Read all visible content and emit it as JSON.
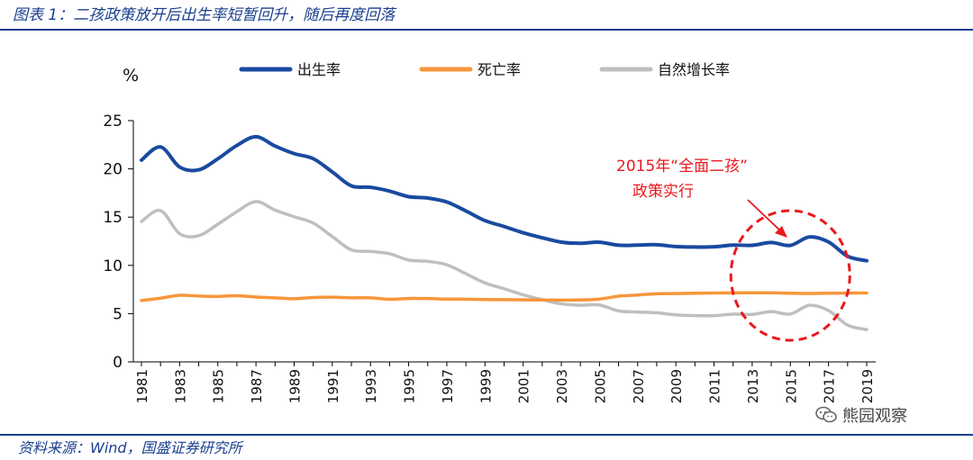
{
  "figure": {
    "title": "图表 1：二孩政策放开后出生率短暂回升，随后再度回落",
    "source": "资料来源：Wind，国盛证券研究所",
    "watermark": "熊园观察"
  },
  "chart_data": {
    "type": "line",
    "ylabel": "%",
    "ylim": [
      0,
      25
    ],
    "yticks": [
      0,
      5,
      10,
      15,
      20,
      25
    ],
    "xlim": [
      1981,
      2019
    ],
    "xticks": [
      "1981",
      "1983",
      "1985",
      "1987",
      "1989",
      "1991",
      "1993",
      "1995",
      "1997",
      "1999",
      "2001",
      "2003",
      "2005",
      "2007",
      "2009",
      "2011",
      "2013",
      "2015",
      "2017",
      "2019"
    ],
    "legend_position": "top",
    "grid": false,
    "x": [
      1981,
      1982,
      1983,
      1984,
      1985,
      1986,
      1987,
      1988,
      1989,
      1990,
      1991,
      1992,
      1993,
      1994,
      1995,
      1996,
      1997,
      1998,
      1999,
      2000,
      2001,
      2002,
      2003,
      2004,
      2005,
      2006,
      2007,
      2008,
      2009,
      2010,
      2011,
      2012,
      2013,
      2014,
      2015,
      2016,
      2017,
      2018,
      2019
    ],
    "series": [
      {
        "name": "出生率",
        "color": "#1a4aa0",
        "values": [
          20.91,
          22.28,
          20.19,
          19.9,
          21.04,
          22.43,
          23.33,
          22.37,
          21.58,
          21.06,
          19.68,
          18.24,
          18.09,
          17.7,
          17.12,
          16.98,
          16.57,
          15.64,
          14.64,
          14.03,
          13.38,
          12.86,
          12.41,
          12.29,
          12.4,
          12.09,
          12.1,
          12.14,
          11.95,
          11.9,
          11.93,
          12.1,
          12.08,
          12.37,
          12.07,
          12.95,
          12.43,
          10.94,
          10.48
        ]
      },
      {
        "name": "死亡率",
        "color": "#f7963c",
        "values": [
          6.36,
          6.6,
          6.9,
          6.82,
          6.78,
          6.86,
          6.72,
          6.64,
          6.54,
          6.67,
          6.7,
          6.64,
          6.64,
          6.49,
          6.57,
          6.56,
          6.51,
          6.5,
          6.46,
          6.45,
          6.43,
          6.41,
          6.4,
          6.42,
          6.51,
          6.81,
          6.93,
          7.06,
          7.08,
          7.11,
          7.14,
          7.15,
          7.16,
          7.16,
          7.11,
          7.09,
          7.11,
          7.13,
          7.14
        ]
      },
      {
        "name": "自然增长率",
        "color": "#bfbfbf",
        "values": [
          14.55,
          15.68,
          13.29,
          13.08,
          14.26,
          15.57,
          16.61,
          15.73,
          15.04,
          14.39,
          12.98,
          11.6,
          11.45,
          11.21,
          10.55,
          10.42,
          10.06,
          9.14,
          8.18,
          7.58,
          6.95,
          6.45,
          6.01,
          5.87,
          5.89,
          5.28,
          5.17,
          5.08,
          4.87,
          4.79,
          4.79,
          4.95,
          4.92,
          5.21,
          4.96,
          5.86,
          5.32,
          3.81,
          3.34
        ]
      }
    ],
    "annotation": {
      "line1": "2015年“全面二孩”",
      "line2": "政策实行",
      "color": "#e8191e",
      "highlight_year": 2015
    }
  }
}
